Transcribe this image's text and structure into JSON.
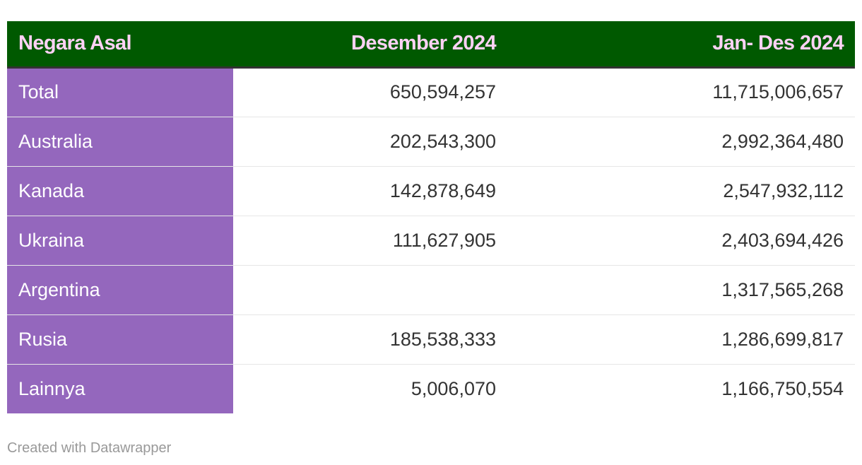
{
  "chart_data": {
    "type": "table",
    "columns": [
      "Negara Asal",
      "Desember 2024",
      "Jan- Des 2024"
    ],
    "rows": [
      [
        "Total",
        "650,594,257",
        "11,715,006,657"
      ],
      [
        "Australia",
        "202,543,300",
        "2,992,364,480"
      ],
      [
        "Kanada",
        "142,878,649",
        "2,547,932,112"
      ],
      [
        "Ukraina",
        "111,627,905",
        "2,403,694,426"
      ],
      [
        "Argentina",
        "",
        "1,317,565,268"
      ],
      [
        "Rusia",
        "185,538,333",
        "1,286,699,817"
      ],
      [
        "Lainnya",
        "5,006,070",
        "1,166,750,554"
      ]
    ]
  },
  "colors": {
    "header_bg": "#005900",
    "header_text": "#ffd2f5",
    "first_column_bg": "#9467bd",
    "first_column_text": "#ffffff"
  },
  "footer": "Created with Datawrapper"
}
